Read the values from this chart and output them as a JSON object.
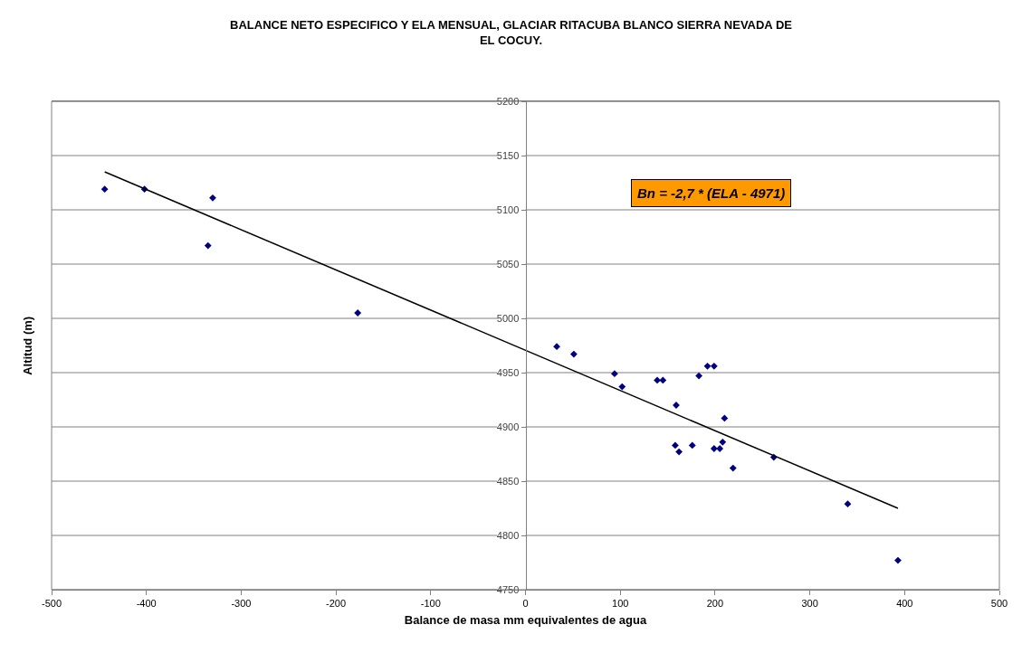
{
  "chart_data": {
    "type": "scatter",
    "title": "BALANCE NETO ESPECIFICO Y ELA MENSUAL, GLACIAR RITACUBA BLANCO SIERRA NEVADA DE\nEL COCUY.",
    "xlabel": "Balance de masa mm equivalentes de agua",
    "ylabel": "Altitud (m)",
    "xlim": [
      -500,
      500
    ],
    "xticks": [
      -500,
      -400,
      -300,
      -200,
      -100,
      0,
      100,
      200,
      300,
      400,
      500
    ],
    "ylim": [
      4750,
      5200
    ],
    "yticks": [
      4750,
      4800,
      4850,
      4900,
      4950,
      5000,
      5050,
      5100,
      5150,
      5200
    ],
    "grid": "y",
    "marker": "diamond",
    "annotations": [
      "Bn = -2,7 * (ELA - 4971)"
    ],
    "series": [
      {
        "type": "scatter",
        "color": "#000080",
        "x": [
          -444,
          -402,
          -330,
          -335,
          -177,
          33,
          51,
          94,
          102,
          139,
          145,
          159,
          158,
          162,
          176,
          183,
          192,
          199,
          199,
          205,
          208,
          210,
          219,
          262,
          340,
          393
        ],
        "values": [
          5119,
          5119,
          5111,
          5067,
          5005,
          4974,
          4967,
          4949,
          4937,
          4943,
          4943,
          4920,
          4883,
          4877,
          4883,
          4947,
          4956,
          4956,
          4880,
          4880,
          4886,
          4908,
          4862,
          4872,
          4829,
          4777
        ]
      },
      {
        "type": "line",
        "color": "#000000",
        "line_style": "solid",
        "marker": "none",
        "x": [
          -444,
          393
        ],
        "values": [
          5135,
          4825
        ]
      }
    ]
  }
}
